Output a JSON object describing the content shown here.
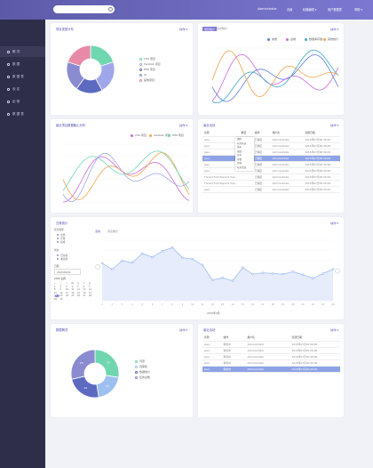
{
  "topbar": {
    "search_placeholder": "",
    "user": "Administrator",
    "nav": [
      "页面",
      "轮播编辑 ▾",
      "用户数据表",
      "帮助 ▾"
    ]
  },
  "sidebar": {
    "items": [
      "概 况",
      "数 据",
      "数 据 表",
      "设 定",
      "反 馈",
      "数 据 表"
    ]
  },
  "colors": {
    "series": [
      "#6fd6b0",
      "#8b8bd0",
      "#a0a6ea",
      "#5c6bbf",
      "#e78aa8",
      "#c96ad9",
      "#f3a34a",
      "#9ec0f0"
    ]
  },
  "pie1": {
    "title": "项目类型分布",
    "menu": "操作 ▾",
    "legend": [
      "CSS 项目",
      "Vanilla1 项目",
      "PHP 项目",
      "JS",
      "其他项目"
    ],
    "values": [
      20,
      22,
      18,
      20,
      20
    ]
  },
  "line1": {
    "title": "",
    "tabs": [
      "项目统计",
      "实时统计"
    ],
    "menu": "操作 ▾",
    "legend": [
      "前端",
      "后端",
      "数据库存储",
      "其他统计"
    ]
  },
  "line2": {
    "title": "最近项目数据截止分析",
    "menu": "操作 ▾",
    "legend": [
      "CSS 项目",
      "Vanilla1 项目",
      "PHP 项目"
    ]
  },
  "table1": {
    "title": "最近活动",
    "menu": "操作 ▾",
    "headers": [
      "名称",
      "类型",
      "操作",
      "用户名",
      "创建日期"
    ],
    "rows": [
      [
        "Java",
        "",
        "已确定",
        "Administrator",
        "2015年07月00 06:00"
      ],
      [
        "Java",
        "",
        "已确定",
        "Administrator",
        "2015年07月00 06:00"
      ],
      [
        "Java",
        "",
        "已确定",
        "Administrator",
        "2015年07月00 06:00"
      ],
      [
        "Java",
        "",
        "已确定",
        "Administrator",
        "2015年07月00 06:00"
      ],
      [
        "Java",
        "",
        "已确定",
        "Administrator",
        "2015年07月00 06:00"
      ],
      [
        "Java",
        "",
        "已确定",
        "Administrator",
        "2015年07月00 06:00"
      ],
      [
        "Thread First Reports Use...",
        "",
        "已确定",
        "Administrator",
        "2015年07月00 06:00"
      ],
      [
        "Thread First Reports Use...",
        "",
        "已确定",
        "Administrator",
        "2015年07月00 06:00"
      ],
      [
        "Java",
        "",
        "已确定",
        "Administrator",
        "2015年07月00 06:00"
      ]
    ],
    "dropdown": [
      "删除",
      "标为已读",
      "发布",
      "修改",
      "分享",
      "查看",
      "复制",
      "标为完成"
    ]
  },
  "area": {
    "title": "日常统计",
    "menu": "操作 ▾",
    "tabs": [
      "活动",
      "评论统计"
    ],
    "date_label": "2015年4月",
    "filters": {
      "status_label": "任务类型",
      "status_opts": [
        "全部",
        "开放",
        "完成"
      ],
      "type_label": "状态",
      "type_opts": [
        "已完成",
        "未完成"
      ],
      "date_label": "日期",
      "date_val": "2015/04/01"
    },
    "cal_header": "2015 四月",
    "cal_days": [
      "一",
      "二",
      "三",
      "四",
      "五",
      "六",
      "日"
    ],
    "values": [
      62,
      52,
      66,
      63,
      78,
      72,
      82,
      88,
      71,
      69,
      59,
      34,
      38,
      33,
      55,
      44,
      46,
      45,
      44,
      48,
      43,
      37,
      45,
      52
    ]
  },
  "pie2": {
    "title": "数据概况",
    "menu": "操作 ▾",
    "legend": [
      "同意",
      "待审核",
      "数据统计",
      "任务总数"
    ],
    "labels": [
      "22",
      "16",
      "19",
      "23"
    ],
    "values": [
      22,
      16,
      19,
      23
    ]
  },
  "table2": {
    "title": "最近活动",
    "menu": "操作 ▾",
    "headers": [
      "名称",
      "操作",
      "用户名",
      "创建日期"
    ],
    "rows": [
      [
        "Java",
        "审核中",
        "Administrator",
        "2015年07月00 06:00"
      ],
      [
        "Java",
        "审核中",
        "Administrator",
        "2015年07月00 06:00"
      ],
      [
        "Java",
        "审核中",
        "Administrator",
        "2015年07月00 06:00"
      ],
      [
        "Java",
        "审核中",
        "Administrator",
        "2015年07月00 06:00"
      ],
      [
        "Java",
        "审核中",
        "Administrator",
        "2015年07月00 06:00"
      ]
    ]
  }
}
